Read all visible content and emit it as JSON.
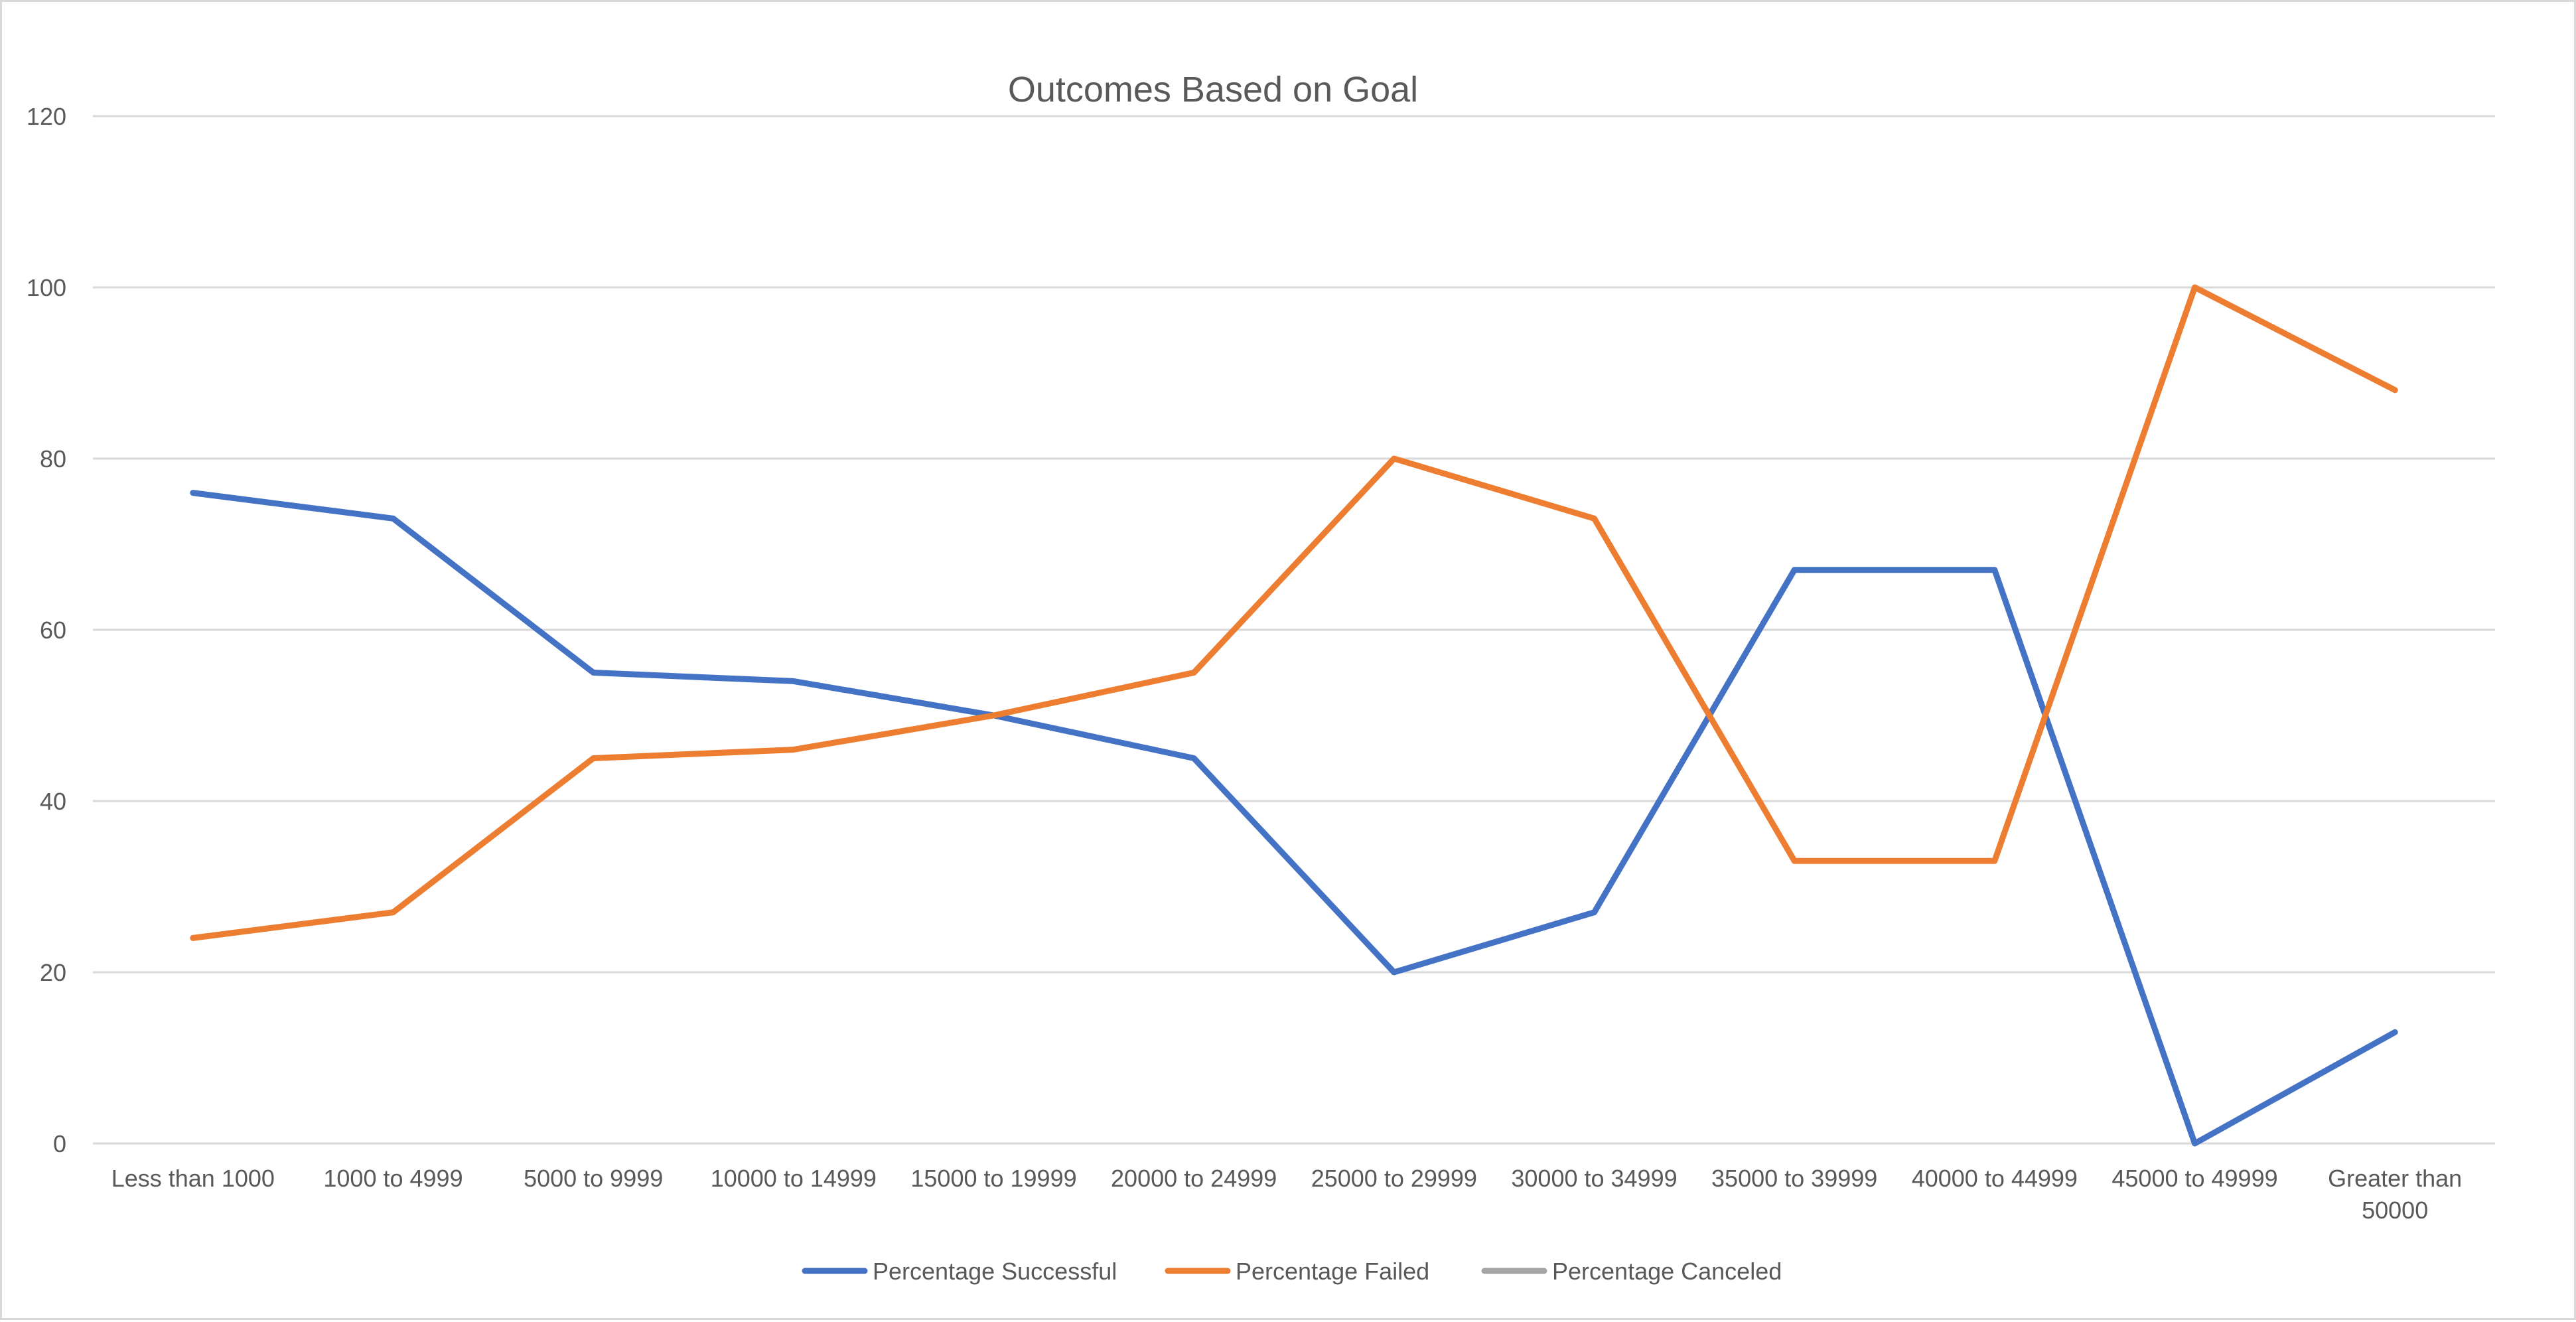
{
  "chart_data": {
    "type": "line",
    "title": "Outcomes Based on Goal",
    "xlabel": "",
    "ylabel": "",
    "ylim": [
      0,
      120
    ],
    "yticks": [
      0,
      20,
      40,
      60,
      80,
      100,
      120
    ],
    "grid": true,
    "legend_position": "bottom",
    "categories": [
      [
        "Less than 1000"
      ],
      [
        "1000 to 4999"
      ],
      [
        "5000 to 9999"
      ],
      [
        "10000 to 14999"
      ],
      [
        "15000 to 19999"
      ],
      [
        "20000 to 24999"
      ],
      [
        "25000 to 29999"
      ],
      [
        "30000 to 34999"
      ],
      [
        "35000 to 39999"
      ],
      [
        "40000 to 44999"
      ],
      [
        "45000 to 49999"
      ],
      [
        "Greater than",
        "50000"
      ]
    ],
    "series": [
      {
        "name": "Percentage Successful",
        "color": "#4472c4",
        "values": [
          76,
          73,
          55,
          54,
          50,
          45,
          20,
          27,
          67,
          67,
          0,
          13
        ]
      },
      {
        "name": "Percentage Failed",
        "color": "#ed7d31",
        "values": [
          24,
          27,
          45,
          46,
          50,
          55,
          80,
          73,
          33,
          33,
          100,
          88
        ]
      },
      {
        "name": "Percentage Canceled",
        "color": "#a5a5a5",
        "values": [
          0,
          0,
          0,
          0,
          0,
          0,
          0,
          0,
          0,
          0,
          0,
          0
        ]
      }
    ],
    "gridline_color": "#d9d9d9",
    "text_color": "#595959"
  }
}
